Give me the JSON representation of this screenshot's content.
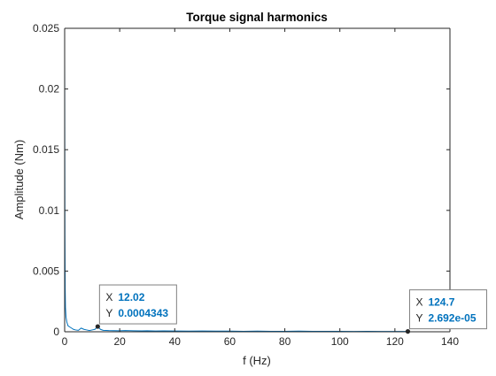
{
  "chart_data": {
    "type": "line",
    "title": "Torque signal harmonics",
    "xlabel": "f (Hz)",
    "ylabel": "Amplitude (Nm)",
    "xlim": [
      0,
      140
    ],
    "ylim": [
      0,
      0.025
    ],
    "xticks": [
      0,
      20,
      40,
      60,
      80,
      100,
      120,
      140
    ],
    "xtick_labels": [
      "0",
      "20",
      "40",
      "60",
      "80",
      "100",
      "120",
      "140"
    ],
    "yticks": [
      0,
      0.005,
      0.01,
      0.015,
      0.02,
      0.025
    ],
    "ytick_labels": [
      "0",
      "0.005",
      "0.01",
      "0.015",
      "0.02",
      "0.025"
    ],
    "grid": false,
    "series": [
      {
        "color": "#0072BD",
        "x": [
          0,
          0.1,
          0.2,
          0.3,
          0.5,
          0.8,
          1.2,
          1.8,
          2.5,
          3.2,
          4,
          5,
          6,
          7,
          8,
          9,
          10,
          11,
          12.02,
          13,
          14,
          16,
          18,
          20,
          22,
          25,
          28,
          30,
          33,
          36,
          40,
          45,
          50,
          55,
          60,
          65,
          70,
          75,
          80,
          85,
          90,
          95,
          100,
          105,
          110,
          115,
          120,
          124.7,
          125
        ],
        "y": [
          0.023,
          0.008,
          0.0035,
          0.002,
          0.0012,
          0.0008,
          0.0005,
          0.0004,
          0.0003,
          0.0002,
          0.00015,
          0.00012,
          0.0003,
          0.0002,
          0.00015,
          0.0001,
          0.00015,
          0.0002,
          0.0004343,
          0.0002,
          0.00012,
          0.0001,
          9e-05,
          8e-05,
          0.0001,
          8e-05,
          7e-05,
          8e-05,
          6e-05,
          7e-05,
          6e-05,
          5e-05,
          6e-05,
          5e-05,
          5e-05,
          4e-05,
          5e-05,
          4e-05,
          4e-05,
          5e-05,
          4e-05,
          4e-05,
          4e-05,
          3e-05,
          4e-05,
          3e-05,
          3e-05,
          2.692e-05,
          3e-05
        ]
      }
    ],
    "datatips": [
      {
        "x": 12.02,
        "y": 0.0004343,
        "x_label": "X",
        "y_label": "Y",
        "x_text": "12.02",
        "y_text": "0.0004343",
        "placement": "above-right"
      },
      {
        "x": 124.7,
        "y": 2.692e-05,
        "x_label": "X",
        "y_label": "Y",
        "x_text": "124.7",
        "y_text": "2.692e-05",
        "placement": "above-right"
      }
    ]
  },
  "colors": {
    "line": "#0072BD",
    "datatip_value": "#0072BD",
    "axes": "#262626",
    "datatip_border": "#808080",
    "datatip_fill": "#ffffff",
    "marker": "#262626"
  }
}
